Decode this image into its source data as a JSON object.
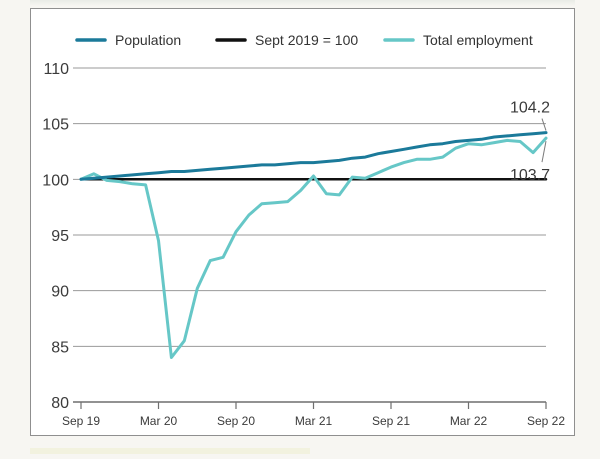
{
  "chart_data": {
    "type": "line",
    "ylim": [
      80,
      110
    ],
    "yticks": [
      80,
      85,
      90,
      95,
      100,
      105,
      110
    ],
    "xlim": [
      0,
      36
    ],
    "xticks": [
      {
        "label": "Sep 19",
        "x": 0
      },
      {
        "label": "Mar 20",
        "x": 6
      },
      {
        "label": "Sep 20",
        "x": 12
      },
      {
        "label": "Mar 21",
        "x": 18
      },
      {
        "label": "Sep 21",
        "x": 24
      },
      {
        "label": "Mar 22",
        "x": 30
      },
      {
        "label": "Sep 22",
        "x": 36
      }
    ],
    "grid": "horizontal",
    "legend_position": "top",
    "series": [
      {
        "name": "Population",
        "color": "#1b7a9a",
        "values": [
          100.0,
          100.1,
          100.2,
          100.3,
          100.4,
          100.5,
          100.6,
          100.7,
          100.7,
          100.8,
          100.9,
          101.0,
          101.1,
          101.2,
          101.3,
          101.3,
          101.4,
          101.5,
          101.5,
          101.6,
          101.7,
          101.9,
          102.0,
          102.3,
          102.5,
          102.7,
          102.9,
          103.1,
          103.2,
          103.4,
          103.5,
          103.6,
          103.8,
          103.9,
          104.0,
          104.1,
          104.2
        ]
      },
      {
        "name": "Sept 2019 = 100",
        "color": "#111111",
        "values": [
          100,
          100,
          100,
          100,
          100,
          100,
          100,
          100,
          100,
          100,
          100,
          100,
          100,
          100,
          100,
          100,
          100,
          100,
          100,
          100,
          100,
          100,
          100,
          100,
          100,
          100,
          100,
          100,
          100,
          100,
          100,
          100,
          100,
          100,
          100,
          100,
          100
        ]
      },
      {
        "name": "Total employment",
        "color": "#66c7c7",
        "values": [
          100.0,
          100.5,
          99.9,
          99.8,
          99.6,
          99.5,
          94.5,
          84.0,
          85.5,
          90.2,
          92.7,
          93.0,
          95.3,
          96.8,
          97.8,
          97.9,
          98.0,
          99.0,
          100.3,
          98.7,
          98.6,
          100.2,
          100.1,
          100.6,
          101.1,
          101.5,
          101.8,
          101.8,
          102.0,
          102.8,
          103.2,
          103.1,
          103.3,
          103.5,
          103.4,
          102.4,
          103.7
        ]
      }
    ],
    "annotations": [
      {
        "text": "104.2",
        "series": "Population"
      },
      {
        "text": "103.7",
        "series": "Total employment"
      }
    ]
  }
}
